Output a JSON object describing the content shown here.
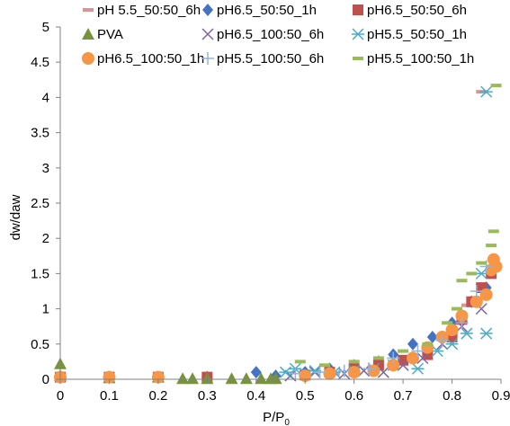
{
  "chart_data": {
    "type": "scatter",
    "title": "",
    "xlabel": "P/P",
    "xlabel_sub": "0",
    "ylabel": "dw/daw",
    "xlim": [
      0,
      0.9
    ],
    "ylim": [
      0,
      5
    ],
    "x_ticks": [
      "0",
      "0.1",
      "0.2",
      "0.3",
      "0.4",
      "0.5",
      "0.6",
      "0.7",
      "0.8",
      "0.9"
    ],
    "y_ticks": [
      "0",
      "0.5",
      "1",
      "1.5",
      "2",
      "2.5",
      "3",
      "3.5",
      "4",
      "4.5",
      "5"
    ],
    "grid": false,
    "legend_position": "top",
    "series": [
      {
        "name": "pH 5.5_50:50_6h",
        "marker": "dash",
        "color": "#d99594",
        "points": [
          [
            0,
            0.03
          ],
          [
            0.1,
            0.03
          ],
          [
            0.2,
            0.04
          ],
          [
            0.3,
            0.03
          ],
          [
            0.5,
            0.05
          ],
          [
            0.56,
            0.08
          ],
          [
            0.6,
            0.12
          ],
          [
            0.65,
            0.2
          ],
          [
            0.7,
            0.3
          ],
          [
            0.75,
            0.45
          ],
          [
            0.8,
            0.7
          ],
          [
            0.83,
            1.05
          ],
          [
            0.86,
            4.08
          ]
        ]
      },
      {
        "name": "pH6.5_50:50_1h",
        "marker": "diamond",
        "color": "#4472c4",
        "points": [
          [
            0,
            0.03
          ],
          [
            0.1,
            0.03
          ],
          [
            0.2,
            0.03
          ],
          [
            0.3,
            0.03
          ],
          [
            0.4,
            0.1
          ],
          [
            0.44,
            0.05
          ],
          [
            0.5,
            0.1
          ],
          [
            0.55,
            0.15
          ],
          [
            0.6,
            0.2
          ],
          [
            0.65,
            0.25
          ],
          [
            0.68,
            0.35
          ],
          [
            0.72,
            0.5
          ],
          [
            0.76,
            0.6
          ],
          [
            0.8,
            0.8
          ],
          [
            0.84,
            1.1
          ],
          [
            0.87,
            1.3
          ]
        ]
      },
      {
        "name": "pH6.5_50:50_6h",
        "marker": "square",
        "color": "#c0504d",
        "points": [
          [
            0,
            0.03
          ],
          [
            0.1,
            0.03
          ],
          [
            0.2,
            0.03
          ],
          [
            0.3,
            0.03
          ],
          [
            0.5,
            0.06
          ],
          [
            0.55,
            0.1
          ],
          [
            0.6,
            0.15
          ],
          [
            0.65,
            0.2
          ],
          [
            0.7,
            0.27
          ],
          [
            0.75,
            0.35
          ],
          [
            0.8,
            0.6
          ],
          [
            0.82,
            0.85
          ],
          [
            0.84,
            1.1
          ],
          [
            0.86,
            1.3
          ],
          [
            0.88,
            1.5
          ]
        ]
      },
      {
        "name": "PVA",
        "marker": "triangle",
        "color": "#77933c",
        "points": [
          [
            0,
            0.22
          ],
          [
            0,
            0.05
          ],
          [
            0.1,
            0.02
          ],
          [
            0.2,
            0.03
          ],
          [
            0.25,
            0.01
          ],
          [
            0.27,
            0.01
          ],
          [
            0.3,
            0.01
          ],
          [
            0.35,
            0.01
          ],
          [
            0.38,
            0.01
          ],
          [
            0.41,
            0.01
          ],
          [
            0.43,
            0.01
          ],
          [
            0.44,
            0.01
          ]
        ]
      },
      {
        "name": "pH6.5_100:50_6h",
        "marker": "x",
        "color": "#8064a2",
        "points": [
          [
            0.47,
            0.05
          ],
          [
            0.52,
            0.1
          ],
          [
            0.58,
            0.08
          ],
          [
            0.62,
            0.12
          ],
          [
            0.66,
            0.1
          ],
          [
            0.7,
            0.2
          ],
          [
            0.74,
            0.3
          ],
          [
            0.78,
            0.5
          ],
          [
            0.82,
            0.75
          ],
          [
            0.86,
            1.0
          ]
        ]
      },
      {
        "name": "pH5.5_50:50_1h",
        "marker": "star",
        "color": "#4bacc6",
        "points": [
          [
            0.46,
            0.1
          ],
          [
            0.48,
            0.15
          ],
          [
            0.52,
            0.12
          ],
          [
            0.56,
            0.1
          ],
          [
            0.6,
            0.12
          ],
          [
            0.64,
            0.15
          ],
          [
            0.68,
            0.2
          ],
          [
            0.73,
            0.15
          ],
          [
            0.77,
            0.4
          ],
          [
            0.8,
            0.5
          ],
          [
            0.83,
            0.65
          ],
          [
            0.86,
            1.5
          ],
          [
            0.87,
            4.08
          ],
          [
            0.87,
            0.65
          ]
        ]
      },
      {
        "name": "pH6.5_100:50_1h",
        "marker": "circle",
        "color": "#f79646",
        "points": [
          [
            0,
            0.03
          ],
          [
            0.1,
            0.03
          ],
          [
            0.2,
            0.03
          ],
          [
            0.5,
            0.05
          ],
          [
            0.55,
            0.08
          ],
          [
            0.6,
            0.1
          ],
          [
            0.64,
            0.12
          ],
          [
            0.68,
            0.2
          ],
          [
            0.72,
            0.3
          ],
          [
            0.75,
            0.45
          ],
          [
            0.78,
            0.6
          ],
          [
            0.8,
            0.7
          ],
          [
            0.82,
            0.9
          ],
          [
            0.85,
            1.1
          ],
          [
            0.87,
            1.2
          ],
          [
            0.88,
            1.55
          ],
          [
            0.885,
            1.7
          ],
          [
            0.89,
            1.6
          ]
        ]
      },
      {
        "name": "pH5.5_100:50_6h",
        "marker": "plus",
        "color": "#95b3d7",
        "points": [
          [
            0.48,
            0.08
          ],
          [
            0.53,
            0.1
          ],
          [
            0.58,
            0.12
          ],
          [
            0.63,
            0.15
          ],
          [
            0.68,
            0.3
          ],
          [
            0.73,
            0.4
          ],
          [
            0.78,
            0.55
          ],
          [
            0.82,
            0.8
          ],
          [
            0.85,
            1.25
          ],
          [
            0.87,
            1.6
          ]
        ]
      },
      {
        "name": "pH5.5_100:50_1h",
        "marker": "dash",
        "color": "#9bbb59",
        "points": [
          [
            0.49,
            0.25
          ],
          [
            0.54,
            0.2
          ],
          [
            0.6,
            0.25
          ],
          [
            0.65,
            0.3
          ],
          [
            0.7,
            0.4
          ],
          [
            0.75,
            0.5
          ],
          [
            0.79,
            0.8
          ],
          [
            0.81,
            1.0
          ],
          [
            0.82,
            1.4
          ],
          [
            0.84,
            1.5
          ],
          [
            0.86,
            1.65
          ],
          [
            0.88,
            1.9
          ],
          [
            0.885,
            2.1
          ],
          [
            0.89,
            4.17
          ]
        ]
      }
    ]
  }
}
